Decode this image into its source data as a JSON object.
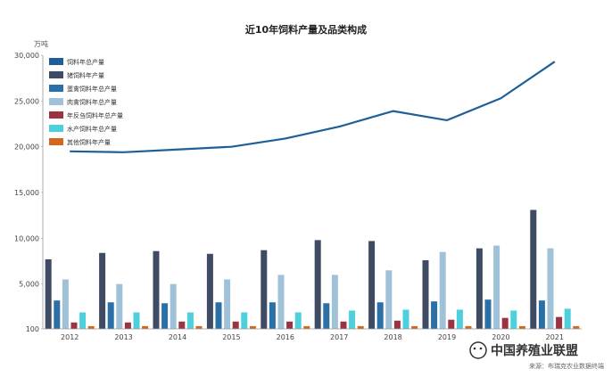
{
  "chart_data": {
    "type": "bar",
    "title": "近10年饲料产量及品类构成",
    "ylabel": "万吨",
    "xlabel": "",
    "ylim": [
      100,
      30000
    ],
    "yticks": [
      "100",
      "5,000",
      "10,000",
      "15,000",
      "20,000",
      "25,000",
      "30,000"
    ],
    "categories": [
      "2012",
      "2013",
      "2014",
      "2015",
      "2016",
      "2017",
      "2018",
      "2019",
      "2020",
      "2021"
    ],
    "series": [
      {
        "name": "饲料年总产量",
        "type": "line",
        "color": "#1f5f96",
        "values": [
          19500,
          19400,
          19700,
          20000,
          20900,
          22200,
          23900,
          22900,
          25300,
          29300
        ]
      },
      {
        "name": "猪饲料年产量",
        "type": "bar",
        "color": "#3f4b63",
        "values": [
          7700,
          8400,
          8600,
          8300,
          8700,
          9800,
          9700,
          7600,
          8900,
          13100
        ]
      },
      {
        "name": "蛋禽饲料年总产量",
        "type": "bar",
        "color": "#2a6fa6",
        "values": [
          3200,
          3000,
          2900,
          3000,
          3000,
          2900,
          3000,
          3100,
          3300,
          3200
        ]
      },
      {
        "name": "肉禽饲料年总产量",
        "type": "bar",
        "color": "#9fc2d8",
        "values": [
          5500,
          5000,
          5000,
          5500,
          6000,
          6000,
          6500,
          8500,
          9200,
          8900
        ]
      },
      {
        "name": "年反刍饲料年总产量",
        "type": "bar",
        "color": "#9a3342",
        "values": [
          800,
          800,
          900,
          900,
          900,
          900,
          1000,
          1100,
          1300,
          1400
        ]
      },
      {
        "name": "水产饲料年总产量",
        "type": "bar",
        "color": "#4dd0dc",
        "values": [
          1900,
          1900,
          1900,
          1900,
          1900,
          2100,
          2200,
          2200,
          2100,
          2300
        ]
      },
      {
        "name": "其他饲料年产量",
        "type": "bar",
        "color": "#d4661e",
        "values": [
          400,
          400,
          400,
          400,
          400,
          400,
          400,
          400,
          400,
          400
        ]
      }
    ],
    "legend_position": "top-left",
    "grid": false
  },
  "watermark": {
    "brand": "中国养殖业联盟",
    "source": "来源：布瑞克农业数据终端"
  }
}
